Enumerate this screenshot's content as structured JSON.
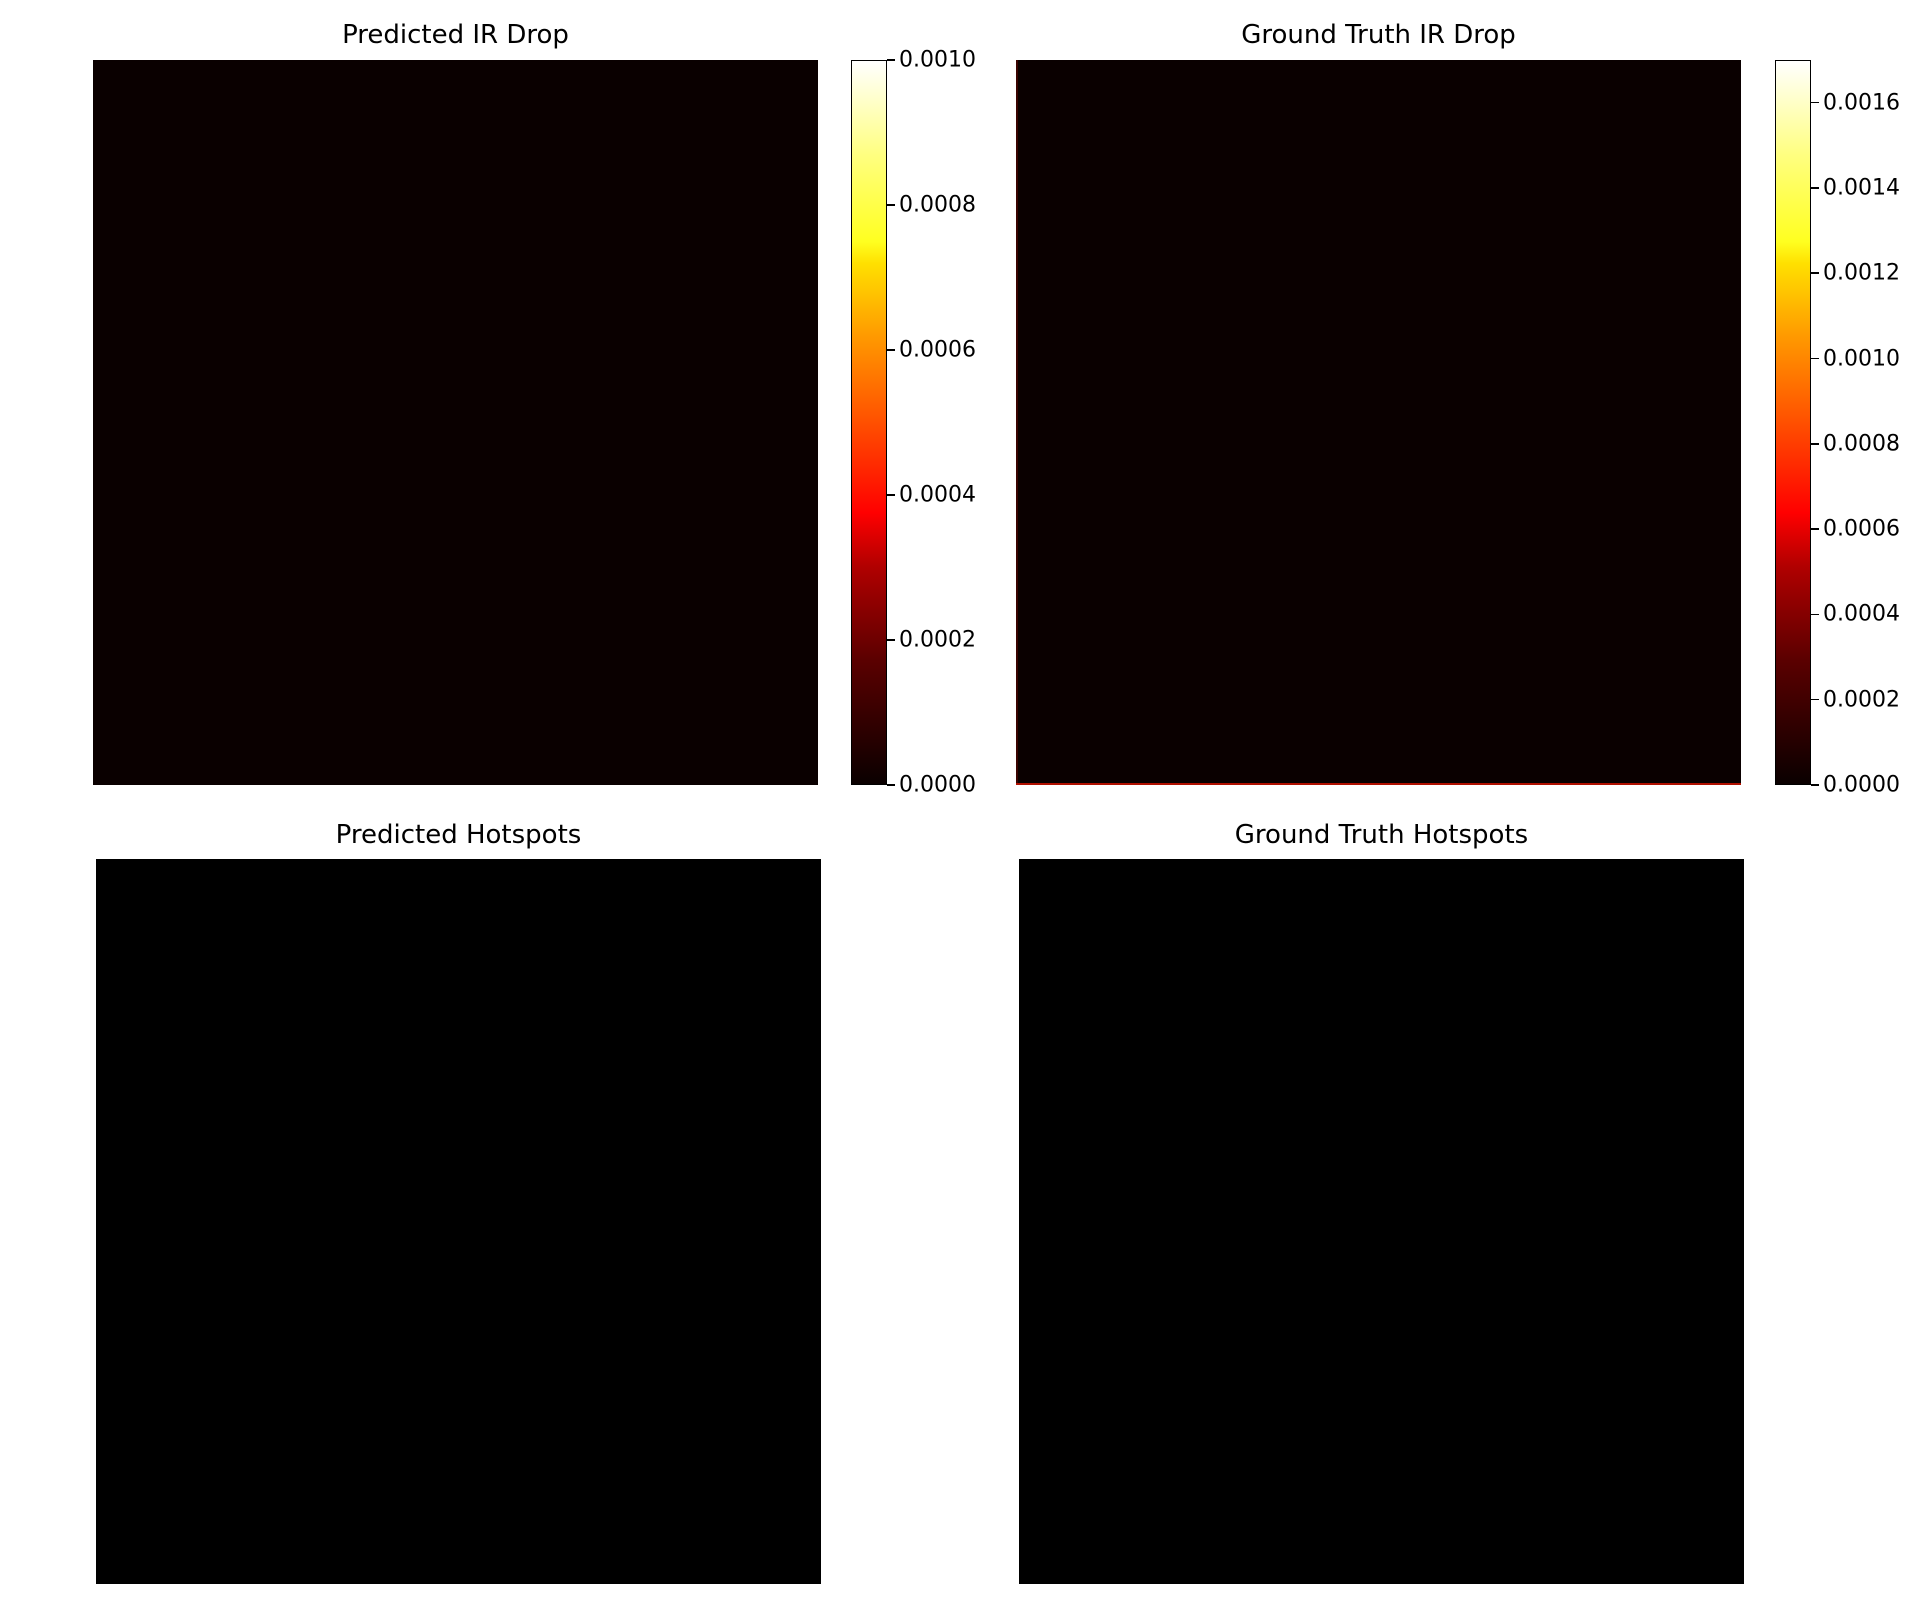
{
  "chart_data": [
    {
      "type": "heatmap",
      "title": "Predicted IR Drop",
      "colormap": "hot",
      "colorbar": {
        "vmin": 0.0,
        "vmax": 0.001,
        "ticks": [
          "0.0000",
          "0.0002",
          "0.0004",
          "0.0006",
          "0.0008",
          "0.0010"
        ],
        "tick_values": [
          0.0,
          0.0002,
          0.0004,
          0.0006,
          0.0008,
          0.001
        ]
      },
      "dominant_value": 0.0,
      "axes_visible": false
    },
    {
      "type": "heatmap",
      "title": "Ground Truth IR Drop",
      "colormap": "hot",
      "colorbar": {
        "vmin": 0.0,
        "vmax": 0.0017,
        "ticks": [
          "0.0000",
          "0.0002",
          "0.0004",
          "0.0006",
          "0.0008",
          "0.0010",
          "0.0012",
          "0.0014",
          "0.0016"
        ],
        "tick_values": [
          0.0,
          0.0002,
          0.0004,
          0.0006,
          0.0008,
          0.001,
          0.0012,
          0.0014,
          0.0016
        ]
      },
      "dominant_value": 0.0,
      "axes_visible": false
    },
    {
      "type": "heatmap",
      "title": "Predicted Hotspots",
      "colormap": "gray",
      "dominant_value": 0,
      "axes_visible": false
    },
    {
      "type": "heatmap",
      "title": "Ground Truth Hotspots",
      "colormap": "gray",
      "dominant_value": 0,
      "axes_visible": false
    }
  ],
  "colors": {
    "hot_background": "#0a0000",
    "binary_background": "#000000",
    "edge_hotspot": "#b01000"
  }
}
